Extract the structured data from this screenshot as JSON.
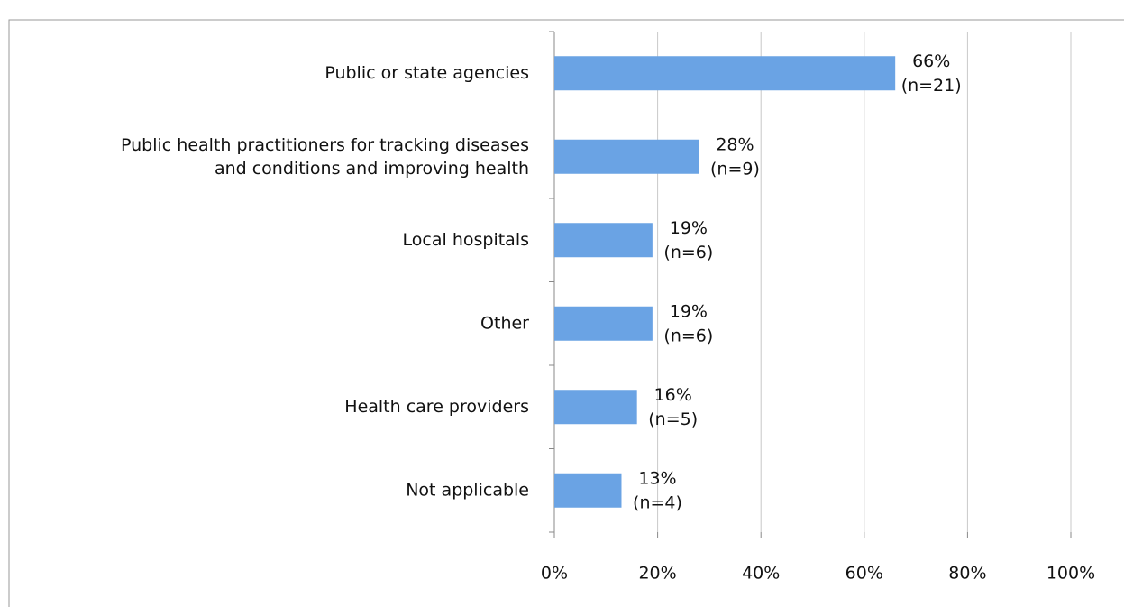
{
  "chart_data": {
    "type": "hbar",
    "categories": [
      "Public or state agencies",
      "Public health practitioners for tracking diseases\nand conditions and improving health",
      "Local hospitals",
      "Other",
      "Health care providers",
      "Not applicable"
    ],
    "values": [
      66,
      28,
      19,
      19,
      16,
      13
    ],
    "value_labels": [
      "66%",
      "28%",
      "19%",
      "19%",
      "16%",
      "13%"
    ],
    "n_labels": [
      "(n=21)",
      "(n=9)",
      "(n=6)",
      "(n=6)",
      "(n=5)",
      "(n=4)"
    ],
    "color": "#6aa3e4",
    "xlim": [
      0,
      100
    ],
    "xticks": [
      {
        "value": 0,
        "label": "0%"
      },
      {
        "value": 20,
        "label": "20%"
      },
      {
        "value": 40,
        "label": "40%"
      },
      {
        "value": 60,
        "label": "60%"
      },
      {
        "value": 80,
        "label": "80%"
      },
      {
        "value": 100,
        "label": "100%"
      }
    ],
    "grid": true
  }
}
